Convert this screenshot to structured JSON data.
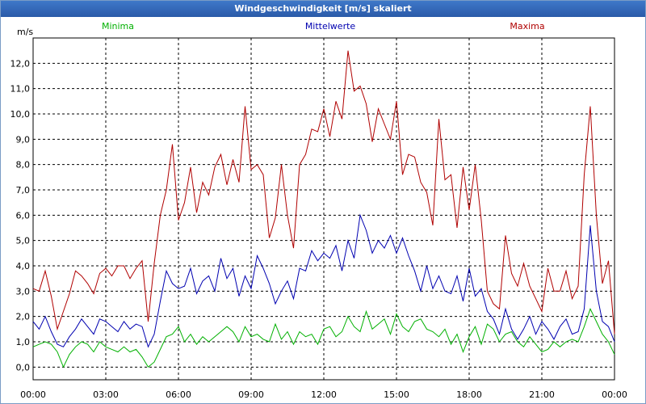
{
  "window": {
    "title": "Windgeschwindigkeit [m/s] skaliert"
  },
  "chart_data": {
    "type": "line",
    "title": "Windgeschwindigkeit [m/s] skaliert",
    "ylabel": "m/s",
    "ylim": [
      -0.5,
      13.0
    ],
    "xlim": [
      0,
      24
    ],
    "grid": true,
    "y_ticks": [
      "0,0",
      "1,0",
      "2,0",
      "3,0",
      "4,0",
      "5,0",
      "6,0",
      "7,0",
      "8,0",
      "9,0",
      "10,0",
      "11,0",
      "12,0"
    ],
    "x_ticks": [
      {
        "time": "00:00",
        "date": "18.07.12"
      },
      {
        "time": "03:00",
        "date": "18.07.12"
      },
      {
        "time": "06:00",
        "date": "18.07.12"
      },
      {
        "time": "09:00",
        "date": "18.07.12"
      },
      {
        "time": "12:00",
        "date": "18.07.12"
      },
      {
        "time": "15:00",
        "date": "18.07.12"
      },
      {
        "time": "18:00",
        "date": "18.07.12"
      },
      {
        "time": "21:00",
        "date": "18.07.12"
      },
      {
        "time": "00:00",
        "date": "19.07.12"
      }
    ],
    "x": [
      0,
      0.25,
      0.5,
      0.75,
      1,
      1.25,
      1.5,
      1.75,
      2,
      2.25,
      2.5,
      2.75,
      3,
      3.25,
      3.5,
      3.75,
      4,
      4.25,
      4.5,
      4.75,
      5,
      5.25,
      5.5,
      5.75,
      6,
      6.25,
      6.5,
      6.75,
      7,
      7.25,
      7.5,
      7.75,
      8,
      8.25,
      8.5,
      8.75,
      9,
      9.25,
      9.5,
      9.75,
      10,
      10.25,
      10.5,
      10.75,
      11,
      11.25,
      11.5,
      11.75,
      12,
      12.25,
      12.5,
      12.75,
      13,
      13.25,
      13.5,
      13.75,
      14,
      14.25,
      14.5,
      14.75,
      15,
      15.25,
      15.5,
      15.75,
      16,
      16.25,
      16.5,
      16.75,
      17,
      17.25,
      17.5,
      17.75,
      18,
      18.25,
      18.5,
      18.75,
      19,
      19.25,
      19.5,
      19.75,
      20,
      20.25,
      20.5,
      20.75,
      21,
      21.25,
      21.5,
      21.75,
      22,
      22.25,
      22.5,
      22.75,
      23,
      23.25,
      23.5,
      23.75,
      24
    ],
    "series": [
      {
        "name": "Minima",
        "color": "#00b000",
        "values": [
          0.8,
          0.9,
          1.0,
          0.9,
          0.6,
          0.0,
          0.5,
          0.8,
          1.0,
          0.9,
          0.6,
          1.0,
          0.8,
          0.7,
          0.6,
          0.8,
          0.6,
          0.7,
          0.4,
          0.0,
          0.2,
          0.7,
          1.2,
          1.3,
          1.6,
          1.0,
          1.3,
          0.9,
          1.2,
          1.0,
          1.2,
          1.4,
          1.6,
          1.4,
          1.0,
          1.6,
          1.2,
          1.3,
          1.1,
          1.0,
          1.7,
          1.1,
          1.4,
          0.9,
          1.4,
          1.2,
          1.3,
          0.9,
          1.5,
          1.6,
          1.2,
          1.4,
          2.0,
          1.6,
          1.4,
          2.2,
          1.5,
          1.7,
          1.9,
          1.3,
          2.1,
          1.6,
          1.4,
          1.8,
          1.9,
          1.5,
          1.4,
          1.2,
          1.5,
          0.9,
          1.3,
          0.6,
          1.2,
          1.6,
          0.9,
          1.7,
          1.5,
          1.0,
          1.3,
          1.4,
          1.0,
          0.8,
          1.2,
          0.9,
          0.6,
          0.7,
          1.0,
          0.8,
          1.0,
          1.1,
          1.0,
          1.6,
          2.3,
          1.8,
          1.3,
          1.0,
          0.5
        ]
      },
      {
        "name": "Mittelwerte",
        "color": "#0000b0",
        "values": [
          1.8,
          1.5,
          2.0,
          1.4,
          0.9,
          0.8,
          1.2,
          1.5,
          1.9,
          1.6,
          1.3,
          1.9,
          1.8,
          1.6,
          1.4,
          1.8,
          1.5,
          1.7,
          1.6,
          0.8,
          1.3,
          2.6,
          3.8,
          3.3,
          3.1,
          3.2,
          3.9,
          2.9,
          3.4,
          3.6,
          3.0,
          4.3,
          3.5,
          3.9,
          2.8,
          3.6,
          3.1,
          4.4,
          3.9,
          3.3,
          2.5,
          3.0,
          3.4,
          2.7,
          3.9,
          3.8,
          4.6,
          4.2,
          4.5,
          4.3,
          4.8,
          3.8,
          5.0,
          4.3,
          6.0,
          5.4,
          4.5,
          5.0,
          4.7,
          5.2,
          4.5,
          5.1,
          4.4,
          3.8,
          3.0,
          4.0,
          3.1,
          3.6,
          3.0,
          2.9,
          3.6,
          2.6,
          3.9,
          2.8,
          3.1,
          2.2,
          1.9,
          1.3,
          2.3,
          1.5,
          1.1,
          1.5,
          2.0,
          1.3,
          1.8,
          1.5,
          1.1,
          1.6,
          1.9,
          1.3,
          1.4,
          2.3,
          5.6,
          3.0,
          1.8,
          1.6,
          1.0
        ]
      },
      {
        "name": "Maxima",
        "color": "#b00000",
        "values": [
          3.1,
          3.0,
          3.8,
          2.8,
          1.5,
          2.2,
          2.9,
          3.8,
          3.6,
          3.3,
          2.9,
          3.7,
          3.9,
          3.6,
          4.0,
          4.0,
          3.5,
          3.9,
          4.2,
          1.8,
          4.1,
          6.0,
          7.0,
          8.8,
          5.8,
          6.5,
          7.9,
          6.1,
          7.3,
          6.8,
          7.9,
          8.4,
          7.2,
          8.2,
          7.3,
          10.3,
          7.8,
          8.0,
          7.6,
          5.1,
          5.9,
          8.0,
          6.0,
          4.7,
          8.0,
          8.4,
          9.4,
          9.3,
          10.2,
          9.1,
          10.5,
          9.8,
          12.5,
          10.9,
          11.1,
          10.4,
          8.9,
          10.2,
          9.6,
          9.0,
          10.5,
          7.6,
          8.4,
          8.3,
          7.3,
          6.9,
          5.6,
          9.8,
          7.4,
          7.6,
          5.5,
          7.9,
          6.2,
          8.0,
          5.8,
          3.0,
          2.5,
          2.3,
          5.2,
          3.7,
          3.2,
          4.1,
          3.2,
          2.7,
          2.2,
          3.9,
          3.0,
          3.0,
          3.8,
          2.7,
          3.2,
          7.6,
          10.3,
          6.0,
          3.3,
          4.2,
          1.3
        ]
      }
    ]
  }
}
